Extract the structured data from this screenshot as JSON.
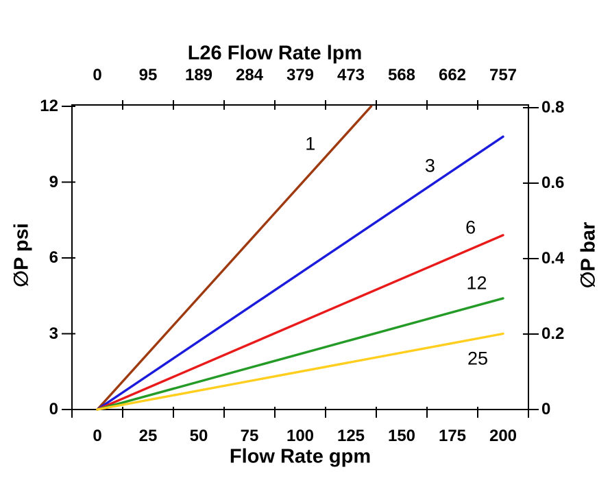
{
  "chart_data": {
    "type": "line",
    "title": "L26 Flow Rate lpm",
    "xlabel": "Flow Rate gpm",
    "ylabel_left": "∅P psi",
    "ylabel_right": "∅P bar",
    "axes": {
      "x_bottom": {
        "unit": "gpm",
        "tick_labels": [
          "0",
          "25",
          "50",
          "75",
          "100",
          "125",
          "150",
          "175",
          "200"
        ],
        "tick_values": [
          0,
          25,
          50,
          75,
          100,
          125,
          150,
          175,
          200
        ],
        "range": [
          -12.5,
          212.5
        ],
        "bins": 9
      },
      "x_top": {
        "unit": "lpm",
        "tick_labels": [
          "0",
          "95",
          "189",
          "284",
          "379",
          "473",
          "568",
          "662",
          "757"
        ],
        "tick_values": [
          0,
          95,
          189,
          284,
          379,
          473,
          568,
          662,
          757
        ]
      },
      "y_left": {
        "unit": "psi",
        "tick_labels": [
          "0",
          "3",
          "6",
          "9",
          "12"
        ],
        "tick_values": [
          0,
          3,
          6,
          9,
          12
        ],
        "range": [
          0,
          12.05
        ]
      },
      "y_right": {
        "unit": "bar",
        "tick_labels": [
          "0",
          "0.2",
          "0.4",
          "0.6",
          "0.8"
        ],
        "tick_values": [
          0,
          0.2,
          0.4,
          0.6,
          0.8
        ],
        "range": [
          0,
          0.805
        ]
      },
      "grid": false,
      "frame": true,
      "axis_color": "#000000"
    },
    "series": [
      {
        "name": "1",
        "color": "#9E3A10",
        "x": [
          0,
          135
        ],
        "y_psi": [
          0,
          12.0
        ],
        "label_pos": {
          "gpm": 105,
          "psi": 10.5
        }
      },
      {
        "name": "3",
        "color": "#1B1BDC",
        "x": [
          0,
          200
        ],
        "y_psi": [
          0,
          10.8
        ],
        "label_pos": {
          "gpm": 164,
          "psi": 9.63
        }
      },
      {
        "name": "6",
        "color": "#E81A1A",
        "x": [
          0,
          200
        ],
        "y_psi": [
          0,
          6.9
        ],
        "label_pos": {
          "gpm": 184,
          "psi": 7.2
        }
      },
      {
        "name": "12",
        "color": "#249B26",
        "x": [
          0,
          200
        ],
        "y_psi": [
          0,
          4.4
        ],
        "label_pos": {
          "gpm": 187,
          "psi": 5.0
        }
      },
      {
        "name": "25",
        "color": "#FFCE1F",
        "x": [
          0,
          200
        ],
        "y_psi": [
          0,
          3.0
        ],
        "label_pos": {
          "gpm": 187.5,
          "psi": 2.0
        }
      }
    ],
    "legend": "none (curves labeled inline)"
  }
}
